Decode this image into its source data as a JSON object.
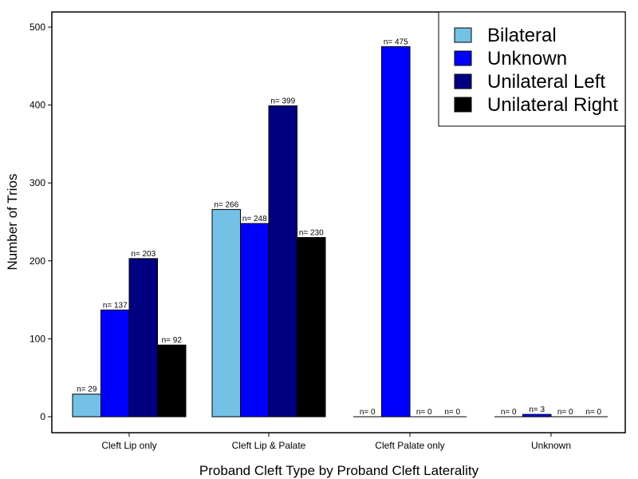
{
  "chart_data": {
    "type": "bar",
    "title": "",
    "xlabel": "Proband Cleft Type by Proband Cleft Laterality",
    "ylabel": "Number of Trios",
    "categories": [
      "Cleft Lip only",
      "Cleft Lip & Palate",
      "Cleft Palate only",
      "Unknown"
    ],
    "series": [
      {
        "name": "Bilateral",
        "color": "#74c1e6",
        "values": [
          29,
          266,
          0,
          0
        ],
        "labels": [
          "n= 29",
          "n= 266",
          "n= 0",
          "n= 0"
        ]
      },
      {
        "name": "Unknown",
        "color": "#0000ff",
        "values": [
          137,
          248,
          475,
          3
        ],
        "labels": [
          "n= 137",
          "n= 248",
          "n= 475",
          "n= 3"
        ]
      },
      {
        "name": "Unilateral Left",
        "color": "#000080",
        "values": [
          203,
          399,
          0,
          0
        ],
        "labels": [
          "n= 203",
          "n= 399",
          "n= 0",
          "n= 0"
        ]
      },
      {
        "name": "Unilateral Right",
        "color": "#000000",
        "values": [
          92,
          230,
          0,
          0
        ],
        "labels": [
          "n= 92",
          "n= 230",
          "n= 0",
          "n= 0"
        ]
      }
    ],
    "ylim": [
      -20,
      520
    ],
    "yticks": [
      0,
      100,
      200,
      300,
      400,
      500
    ],
    "ytick_labels": [
      "0",
      "100",
      "200",
      "300",
      "400",
      "500"
    ],
    "legend_position": "top-right",
    "grid": false
  }
}
